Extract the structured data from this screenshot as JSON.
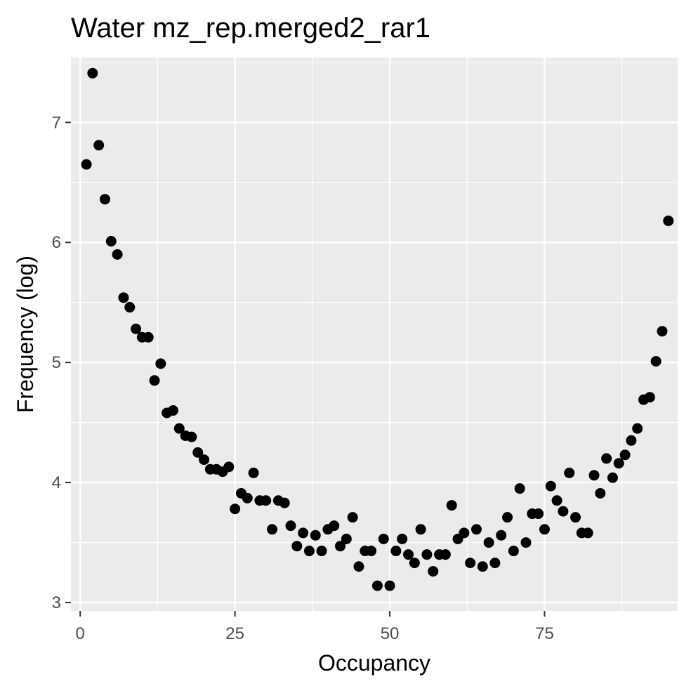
{
  "chart_data": {
    "type": "scatter",
    "title": "Water mz_rep.merged2_rar1",
    "xlabel": "Occupancy",
    "ylabel": "Frequency (log)",
    "xlim": [
      -1.5,
      96.5
    ],
    "ylim": [
      2.93,
      7.54
    ],
    "x_ticks": [
      0,
      25,
      50,
      75
    ],
    "x_tick_labels": [
      "0",
      "25",
      "50",
      "75"
    ],
    "y_ticks": [
      3,
      4,
      5,
      6,
      7
    ],
    "y_tick_labels": [
      "3",
      "4",
      "5",
      "6",
      "7"
    ],
    "grid": true,
    "panel_background": "#ebebeb",
    "grid_color": "#ffffff",
    "point_color": "#000000",
    "x": [
      1,
      2,
      3,
      4,
      5,
      6,
      7,
      8,
      9,
      10,
      11,
      12,
      13,
      14,
      15,
      16,
      17,
      18,
      19,
      20,
      21,
      22,
      23,
      24,
      25,
      26,
      27,
      28,
      29,
      30,
      31,
      32,
      33,
      34,
      35,
      36,
      37,
      38,
      39,
      40,
      41,
      42,
      43,
      44,
      45,
      46,
      47,
      48,
      49,
      50,
      51,
      52,
      53,
      54,
      55,
      56,
      57,
      58,
      59,
      60,
      61,
      62,
      63,
      64,
      65,
      66,
      67,
      68,
      69,
      70,
      71,
      72,
      73,
      74,
      75,
      76,
      77,
      78,
      79,
      80,
      81,
      82,
      83,
      84,
      85,
      86,
      87,
      88,
      89,
      90,
      91,
      92,
      93,
      94,
      95
    ],
    "y": [
      6.65,
      7.41,
      6.81,
      6.36,
      6.01,
      5.9,
      5.54,
      5.46,
      5.28,
      5.21,
      5.21,
      4.85,
      4.99,
      4.58,
      4.6,
      4.45,
      4.39,
      4.38,
      4.25,
      4.19,
      4.11,
      4.11,
      4.09,
      4.13,
      3.78,
      3.91,
      3.87,
      4.08,
      3.85,
      3.85,
      3.61,
      3.85,
      3.83,
      3.64,
      3.47,
      3.58,
      3.43,
      3.56,
      3.43,
      3.61,
      3.64,
      3.47,
      3.53,
      3.71,
      3.3,
      3.43,
      3.43,
      3.14,
      3.53,
      3.14,
      3.43,
      3.53,
      3.4,
      3.33,
      3.61,
      3.4,
      3.26,
      3.4,
      3.4,
      3.81,
      3.53,
      3.58,
      3.33,
      3.61,
      3.3,
      3.5,
      3.33,
      3.56,
      3.71,
      3.43,
      3.95,
      3.5,
      3.74,
      3.74,
      3.61,
      3.97,
      3.85,
      3.76,
      4.08,
      3.71,
      3.58,
      3.58,
      4.06,
      3.91,
      4.2,
      4.04,
      4.16,
      4.23,
      4.35,
      4.45,
      4.69,
      4.71,
      5.01,
      5.26,
      6.18
    ]
  }
}
